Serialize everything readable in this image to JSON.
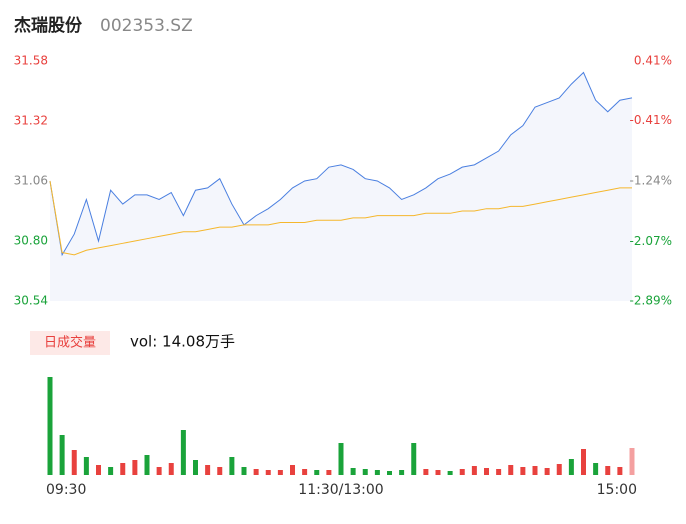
{
  "chart_data": [
    {
      "type": "line",
      "title": "杰瑞股份",
      "subtitle": "002353.SZ",
      "categories": [
        "09:30",
        null,
        null,
        null,
        null,
        null,
        null,
        null,
        null,
        null,
        null,
        null,
        null,
        null,
        null,
        null,
        null,
        null,
        null,
        null,
        null,
        null,
        null,
        null,
        "11:30/13:00",
        null,
        null,
        null,
        null,
        null,
        null,
        null,
        null,
        null,
        null,
        null,
        null,
        null,
        null,
        null,
        null,
        null,
        null,
        null,
        null,
        null,
        null,
        null,
        "15:00"
      ],
      "series": [
        {
          "color": "#4a7fe0",
          "area_color": "#f4f6fc",
          "values": [
            31.06,
            30.74,
            30.83,
            30.98,
            30.8,
            31.02,
            30.96,
            31.0,
            31.0,
            30.98,
            31.01,
            30.91,
            31.02,
            31.03,
            31.07,
            30.96,
            30.87,
            30.91,
            30.94,
            30.98,
            31.03,
            31.06,
            31.07,
            31.12,
            31.13,
            31.11,
            31.07,
            31.06,
            31.03,
            30.98,
            31.0,
            31.03,
            31.07,
            31.09,
            31.12,
            31.13,
            31.16,
            31.19,
            31.26,
            31.3,
            31.38,
            31.4,
            31.42,
            31.48,
            31.53,
            31.41,
            31.36,
            31.41,
            31.42
          ]
        },
        {
          "color": "#f5b72c",
          "values": [
            31.06,
            30.75,
            30.74,
            30.76,
            30.77,
            30.78,
            30.79,
            30.8,
            30.81,
            30.82,
            30.83,
            30.84,
            30.84,
            30.85,
            30.86,
            30.86,
            30.87,
            30.87,
            30.87,
            30.88,
            30.88,
            30.88,
            30.89,
            30.89,
            30.89,
            30.9,
            30.9,
            30.91,
            30.91,
            30.91,
            30.91,
            30.92,
            30.92,
            30.92,
            30.93,
            30.93,
            30.94,
            30.94,
            30.95,
            30.95,
            30.96,
            30.97,
            30.98,
            30.99,
            31.0,
            31.01,
            31.02,
            31.03,
            31.03
          ]
        }
      ],
      "ylim": [
        30.54,
        31.58
      ],
      "yticks": [
        31.58,
        31.32,
        31.06,
        {
          "value": 30.8,
          "label": "30.80"
        },
        30.54
      ],
      "y2lim": [
        -2.89,
        0.41
      ],
      "y2ticks": [
        {
          "value": 0.41,
          "label": "0.41%"
        },
        {
          "value": -0.41,
          "label": "-0.41%"
        },
        {
          "value": -1.24,
          "label": "-1.24%"
        },
        {
          "value": -2.07,
          "label": "-2.07%"
        },
        {
          "value": -2.89,
          "label": "-2.89%"
        }
      ],
      "tick_colors": [
        "#e8413e",
        "#e8413e",
        "#888888",
        "#1aa33a",
        "#1aa33a"
      ]
    },
    {
      "type": "bar",
      "title": "日成交量",
      "subtitle": "vol: 14.08万手",
      "values": [
        9800,
        4000,
        2500,
        1800,
        1000,
        800,
        1200,
        1500,
        2000,
        800,
        1200,
        4500,
        1500,
        1000,
        800,
        1800,
        800,
        600,
        500,
        500,
        1000,
        600,
        500,
        500,
        3200,
        700,
        600,
        500,
        400,
        500,
        3200,
        600,
        500,
        400,
        600,
        900,
        700,
        600,
        1000,
        800,
        900,
        700,
        1100,
        1600,
        2600,
        1200,
        900,
        800,
        2700
      ],
      "colors": [
        "#1aa33a",
        "#1aa33a",
        "#e8413e",
        "#1aa33a",
        "#e8413e",
        "#1aa33a",
        "#e8413e",
        "#e8413e",
        "#1aa33a",
        "#e8413e",
        "#e8413e",
        "#1aa33a",
        "#1aa33a",
        "#e8413e",
        "#e8413e",
        "#1aa33a",
        "#1aa33a",
        "#e8413e",
        "#e8413e",
        "#e8413e",
        "#e8413e",
        "#e8413e",
        "#1aa33a",
        "#e8413e",
        "#1aa33a",
        "#1aa33a",
        "#1aa33a",
        "#1aa33a",
        "#1aa33a",
        "#1aa33a",
        "#1aa33a",
        "#e8413e",
        "#e8413e",
        "#1aa33a",
        "#e8413e",
        "#e8413e",
        "#e8413e",
        "#e8413e",
        "#e8413e",
        "#e8413e",
        "#e8413e",
        "#e8413e",
        "#e8413e",
        "#1aa33a",
        "#e8413e",
        "#1aa33a",
        "#e8413e",
        "#e8413e",
        "#f4a0a0"
      ],
      "ylim": [
        0,
        10000
      ]
    }
  ]
}
